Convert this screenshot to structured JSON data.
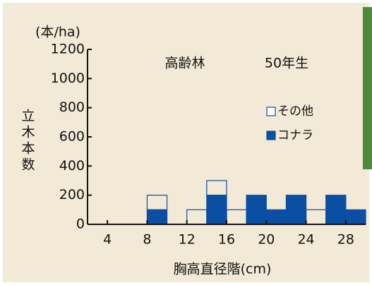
{
  "chart_data": {
    "type": "histogram",
    "title": "高齢林",
    "subtitle": "50年生",
    "y_unit": "(本/ha)",
    "y_label": "立木本数",
    "x_label": "胸高直径階(cm)",
    "bins": [
      2,
      4,
      6,
      8,
      10,
      12,
      14,
      16,
      18,
      20,
      22,
      24,
      26,
      28,
      30
    ],
    "series": [
      {
        "name": "コナラ",
        "color": "#0b4fa3",
        "style": "filled",
        "values": [
          0,
          0,
          0,
          100,
          0,
          0,
          200,
          0,
          200,
          100,
          200,
          0,
          200,
          100
        ]
      },
      {
        "name": "その他",
        "color": "#0b4fa3",
        "style": "outline",
        "values": [
          0,
          0,
          0,
          100,
          0,
          100,
          100,
          100,
          0,
          0,
          0,
          100,
          0,
          0
        ]
      }
    ],
    "stacked": true,
    "xlim": [
      2,
      30
    ],
    "xticks": [
      4,
      8,
      12,
      16,
      20,
      24,
      28
    ],
    "ylim": [
      0,
      1200
    ],
    "yticks": [
      0,
      200,
      400,
      600,
      800,
      1000,
      1200
    ]
  }
}
